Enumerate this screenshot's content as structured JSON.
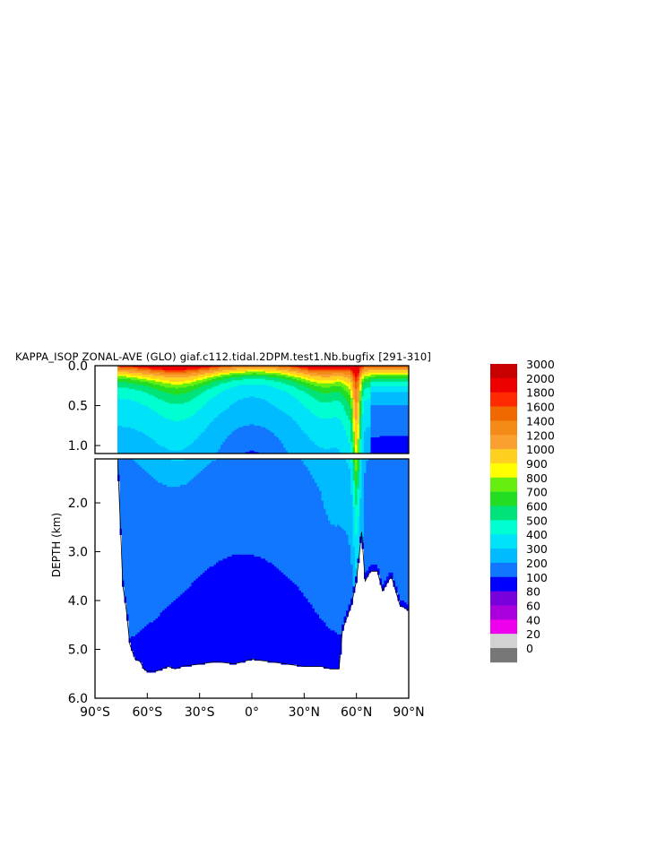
{
  "chart_data": {
    "type": "heatmap",
    "title": "KAPPA_ISOP ZONAL-AVE (GLO) giaf.c112.tidal.2DPM.test1.Nb.bugfix [291-310]",
    "ylabel": "DEPTH (km)",
    "xlabel": "",
    "x_ticks": [
      "90°S",
      "60°S",
      "30°S",
      "0°",
      "30°N",
      "60°N",
      "90°N"
    ],
    "x_tick_values": [
      -90,
      -60,
      -30,
      0,
      30,
      60,
      90
    ],
    "xlim": [
      -90,
      90
    ],
    "upper_panel": {
      "ylim": [
        0.0,
        1.1
      ],
      "y_ticks": [
        "0.0",
        "0.5",
        "1.0"
      ],
      "y_tick_values": [
        0.0,
        0.5,
        1.0
      ]
    },
    "lower_panel": {
      "ylim": [
        1.1,
        6.0
      ],
      "y_ticks": [
        "2.0",
        "3.0",
        "4.0",
        "5.0",
        "6.0"
      ],
      "y_tick_values": [
        2.0,
        3.0,
        4.0,
        5.0,
        6.0
      ]
    },
    "colorbar": {
      "levels": [
        "0",
        "20",
        "40",
        "60",
        "80",
        "100",
        "200",
        "300",
        "400",
        "500",
        "600",
        "700",
        "800",
        "900",
        "1000",
        "1200",
        "1400",
        "1600",
        "1800",
        "2000",
        "3000"
      ],
      "colors": [
        "#777777",
        "#d2d2d2",
        "#ee00ee",
        "#aa00dd",
        "#7700dd",
        "#0000ff",
        "#1177ff",
        "#00bbff",
        "#00e2f8",
        "#00ffd0",
        "#00e37a",
        "#22dd22",
        "#66ee11",
        "#ffff00",
        "#ffd020",
        "#f9a030",
        "#f48a18",
        "#f06800",
        "#ff2a00",
        "#ee0000",
        "#c80000"
      ]
    },
    "bathymetry": {
      "lat": [
        -77,
        -74,
        -72,
        -70,
        -67,
        -64,
        -62,
        -60,
        -55,
        -48,
        -44,
        -40,
        -30,
        -20,
        -10,
        0,
        10,
        20,
        30,
        40,
        45,
        50,
        52,
        55,
        57,
        60,
        63,
        65,
        68,
        72,
        75,
        80,
        85,
        90
      ],
      "depth_km": [
        1.1,
        3.7,
        4.2,
        4.9,
        5.2,
        5.25,
        5.4,
        5.45,
        5.45,
        5.35,
        5.4,
        5.35,
        5.3,
        5.25,
        5.3,
        5.2,
        5.25,
        5.3,
        5.35,
        5.35,
        5.4,
        5.4,
        4.6,
        4.3,
        4.1,
        3.6,
        2.6,
        3.6,
        3.4,
        3.4,
        3.8,
        3.5,
        4.1,
        4.2
      ]
    },
    "field_summary": {
      "surface_peak_range": "1200-3000 near 0.0-0.3 km",
      "deep_interior_range": "200-300",
      "near_bottom_range": "100-200",
      "north_atlantic_plume_lat": 60
    }
  }
}
